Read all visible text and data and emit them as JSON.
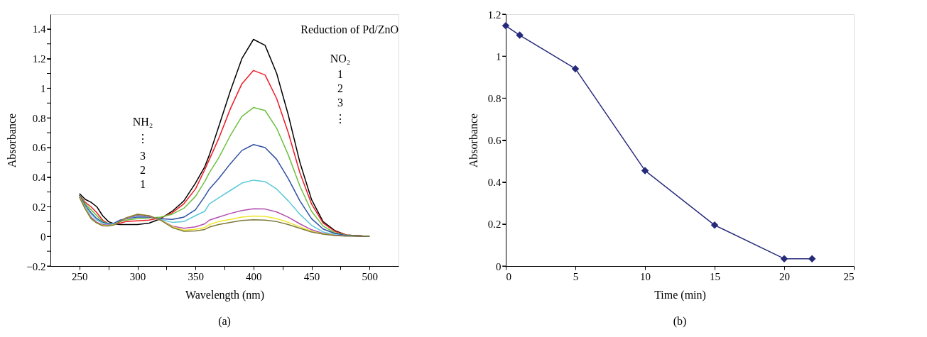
{
  "chart_data": [
    {
      "type": "line",
      "xlabel": "Wavelength (nm)",
      "ylabel": "Absorbance",
      "annotations": [
        "Reduction of Pd/ZnO",
        "NH₂",
        "⋮",
        "3",
        "2",
        "1",
        "NO₂",
        "1",
        "2",
        "3",
        "⋮",
        "(a)"
      ],
      "x": [
        250,
        255,
        260,
        265,
        270,
        275,
        280,
        285,
        290,
        300,
        310,
        320,
        330,
        340,
        350,
        358,
        362,
        370,
        380,
        390,
        400,
        410,
        420,
        430,
        440,
        450,
        460,
        470,
        480,
        490,
        500
      ],
      "series": [
        {
          "color": "#000000",
          "values": [
            0.29,
            0.25,
            0.23,
            0.2,
            0.14,
            0.1,
            0.085,
            0.08,
            0.08,
            0.08,
            0.09,
            0.12,
            0.17,
            0.24,
            0.36,
            0.47,
            0.55,
            0.74,
            0.98,
            1.2,
            1.33,
            1.29,
            1.1,
            0.82,
            0.5,
            0.25,
            0.1,
            0.04,
            0.01,
            0.005,
            0
          ]
        },
        {
          "color": "#ed1c24",
          "values": [
            0.28,
            0.23,
            0.2,
            0.16,
            0.11,
            0.085,
            0.085,
            0.09,
            0.1,
            0.105,
            0.11,
            0.125,
            0.16,
            0.22,
            0.32,
            0.45,
            0.52,
            0.66,
            0.86,
            1.03,
            1.12,
            1.09,
            0.93,
            0.7,
            0.43,
            0.22,
            0.09,
            0.035,
            0.01,
            0.005,
            0
          ]
        },
        {
          "color": "#6cbf3f",
          "values": [
            0.28,
            0.22,
            0.18,
            0.14,
            0.1,
            0.085,
            0.09,
            0.1,
            0.11,
            0.12,
            0.125,
            0.13,
            0.15,
            0.19,
            0.27,
            0.37,
            0.43,
            0.53,
            0.68,
            0.81,
            0.87,
            0.85,
            0.73,
            0.55,
            0.34,
            0.17,
            0.07,
            0.025,
            0.008,
            0.003,
            0
          ]
        },
        {
          "color": "#2e4fa3",
          "values": [
            0.28,
            0.21,
            0.16,
            0.12,
            0.095,
            0.085,
            0.09,
            0.11,
            0.12,
            0.13,
            0.13,
            0.12,
            0.115,
            0.13,
            0.18,
            0.27,
            0.32,
            0.39,
            0.49,
            0.58,
            0.62,
            0.6,
            0.52,
            0.39,
            0.24,
            0.12,
            0.05,
            0.02,
            0.006,
            0.002,
            0
          ]
        },
        {
          "color": "#5bc8d8",
          "values": [
            0.27,
            0.2,
            0.15,
            0.11,
            0.09,
            0.08,
            0.085,
            0.1,
            0.12,
            0.14,
            0.135,
            0.115,
            0.095,
            0.1,
            0.14,
            0.17,
            0.22,
            0.26,
            0.31,
            0.36,
            0.38,
            0.37,
            0.32,
            0.24,
            0.15,
            0.075,
            0.03,
            0.012,
            0.004,
            null,
            null
          ]
        },
        {
          "color": "#b34fb0",
          "values": [
            0.27,
            0.19,
            0.13,
            0.095,
            0.08,
            0.075,
            0.08,
            0.1,
            0.12,
            0.145,
            0.135,
            0.11,
            0.07,
            0.055,
            0.065,
            0.085,
            0.11,
            0.13,
            0.155,
            0.175,
            0.187,
            0.185,
            0.165,
            0.13,
            0.085,
            0.045,
            0.02,
            0.008,
            0.003,
            null,
            null
          ]
        },
        {
          "color": "#f0e52a",
          "values": [
            0.27,
            0.19,
            0.12,
            0.09,
            0.075,
            0.072,
            0.08,
            0.1,
            0.125,
            0.15,
            0.14,
            0.11,
            0.065,
            0.042,
            0.048,
            0.06,
            0.08,
            0.1,
            0.115,
            0.13,
            0.138,
            0.135,
            0.12,
            0.095,
            0.065,
            0.035,
            0.017,
            0.007,
            null,
            null,
            null
          ]
        },
        {
          "color": "#7d7a3a",
          "values": [
            0.265,
            0.185,
            0.12,
            0.09,
            0.072,
            0.07,
            0.078,
            0.1,
            0.125,
            0.15,
            0.14,
            0.11,
            0.06,
            0.035,
            0.037,
            0.047,
            0.063,
            0.08,
            0.095,
            0.108,
            0.113,
            0.11,
            0.1,
            0.08,
            0.055,
            0.03,
            0.015,
            0.006,
            0.002,
            0.001,
            0
          ]
        }
      ],
      "xlim": [
        225,
        525
      ],
      "xticks": [
        250,
        {
          "value": 275,
          "label": null
        },
        300,
        {
          "value": 325,
          "label": null
        },
        350,
        {
          "value": 375,
          "label": null
        },
        400,
        {
          "value": 425,
          "label": null
        },
        450,
        {
          "value": 475,
          "label": null
        },
        500
      ],
      "ylim": [
        -0.2,
        1.5
      ],
      "yticks": [
        {
          "value": -0.2,
          "label": "−0.2"
        },
        {
          "value": -0.1,
          "label": null
        },
        0,
        {
          "value": 0.1,
          "label": null
        },
        0.2,
        {
          "value": 0.3,
          "label": null
        },
        0.4,
        {
          "value": 0.5,
          "label": null
        },
        0.6,
        {
          "value": 0.7,
          "label": null
        },
        0.8,
        {
          "value": 0.9,
          "label": null
        },
        1,
        {
          "value": 1.1,
          "label": null
        },
        1.2,
        {
          "value": 1.3,
          "label": null
        },
        1.4
      ],
      "grid": false,
      "marker": "none",
      "line_style": "solid"
    },
    {
      "type": "line",
      "xlabel": "Time (min)",
      "ylabel": "Absorbance",
      "annotations": [
        "(b)"
      ],
      "x": [
        0,
        1,
        5,
        10,
        15,
        20,
        22
      ],
      "series": [
        {
          "color": "#262a7a",
          "values": [
            1.145,
            1.1,
            0.94,
            0.455,
            0.195,
            0.035,
            0.035
          ]
        }
      ],
      "xlim": [
        0,
        25
      ],
      "xticks": [
        0,
        5,
        10,
        15,
        20,
        25
      ],
      "ylim": [
        0,
        1.2
      ],
      "yticks": [
        0,
        0.2,
        0.4,
        0.6,
        0.8,
        1,
        1.2
      ],
      "grid": false,
      "marker": "diamond",
      "line_style": "solid"
    }
  ]
}
